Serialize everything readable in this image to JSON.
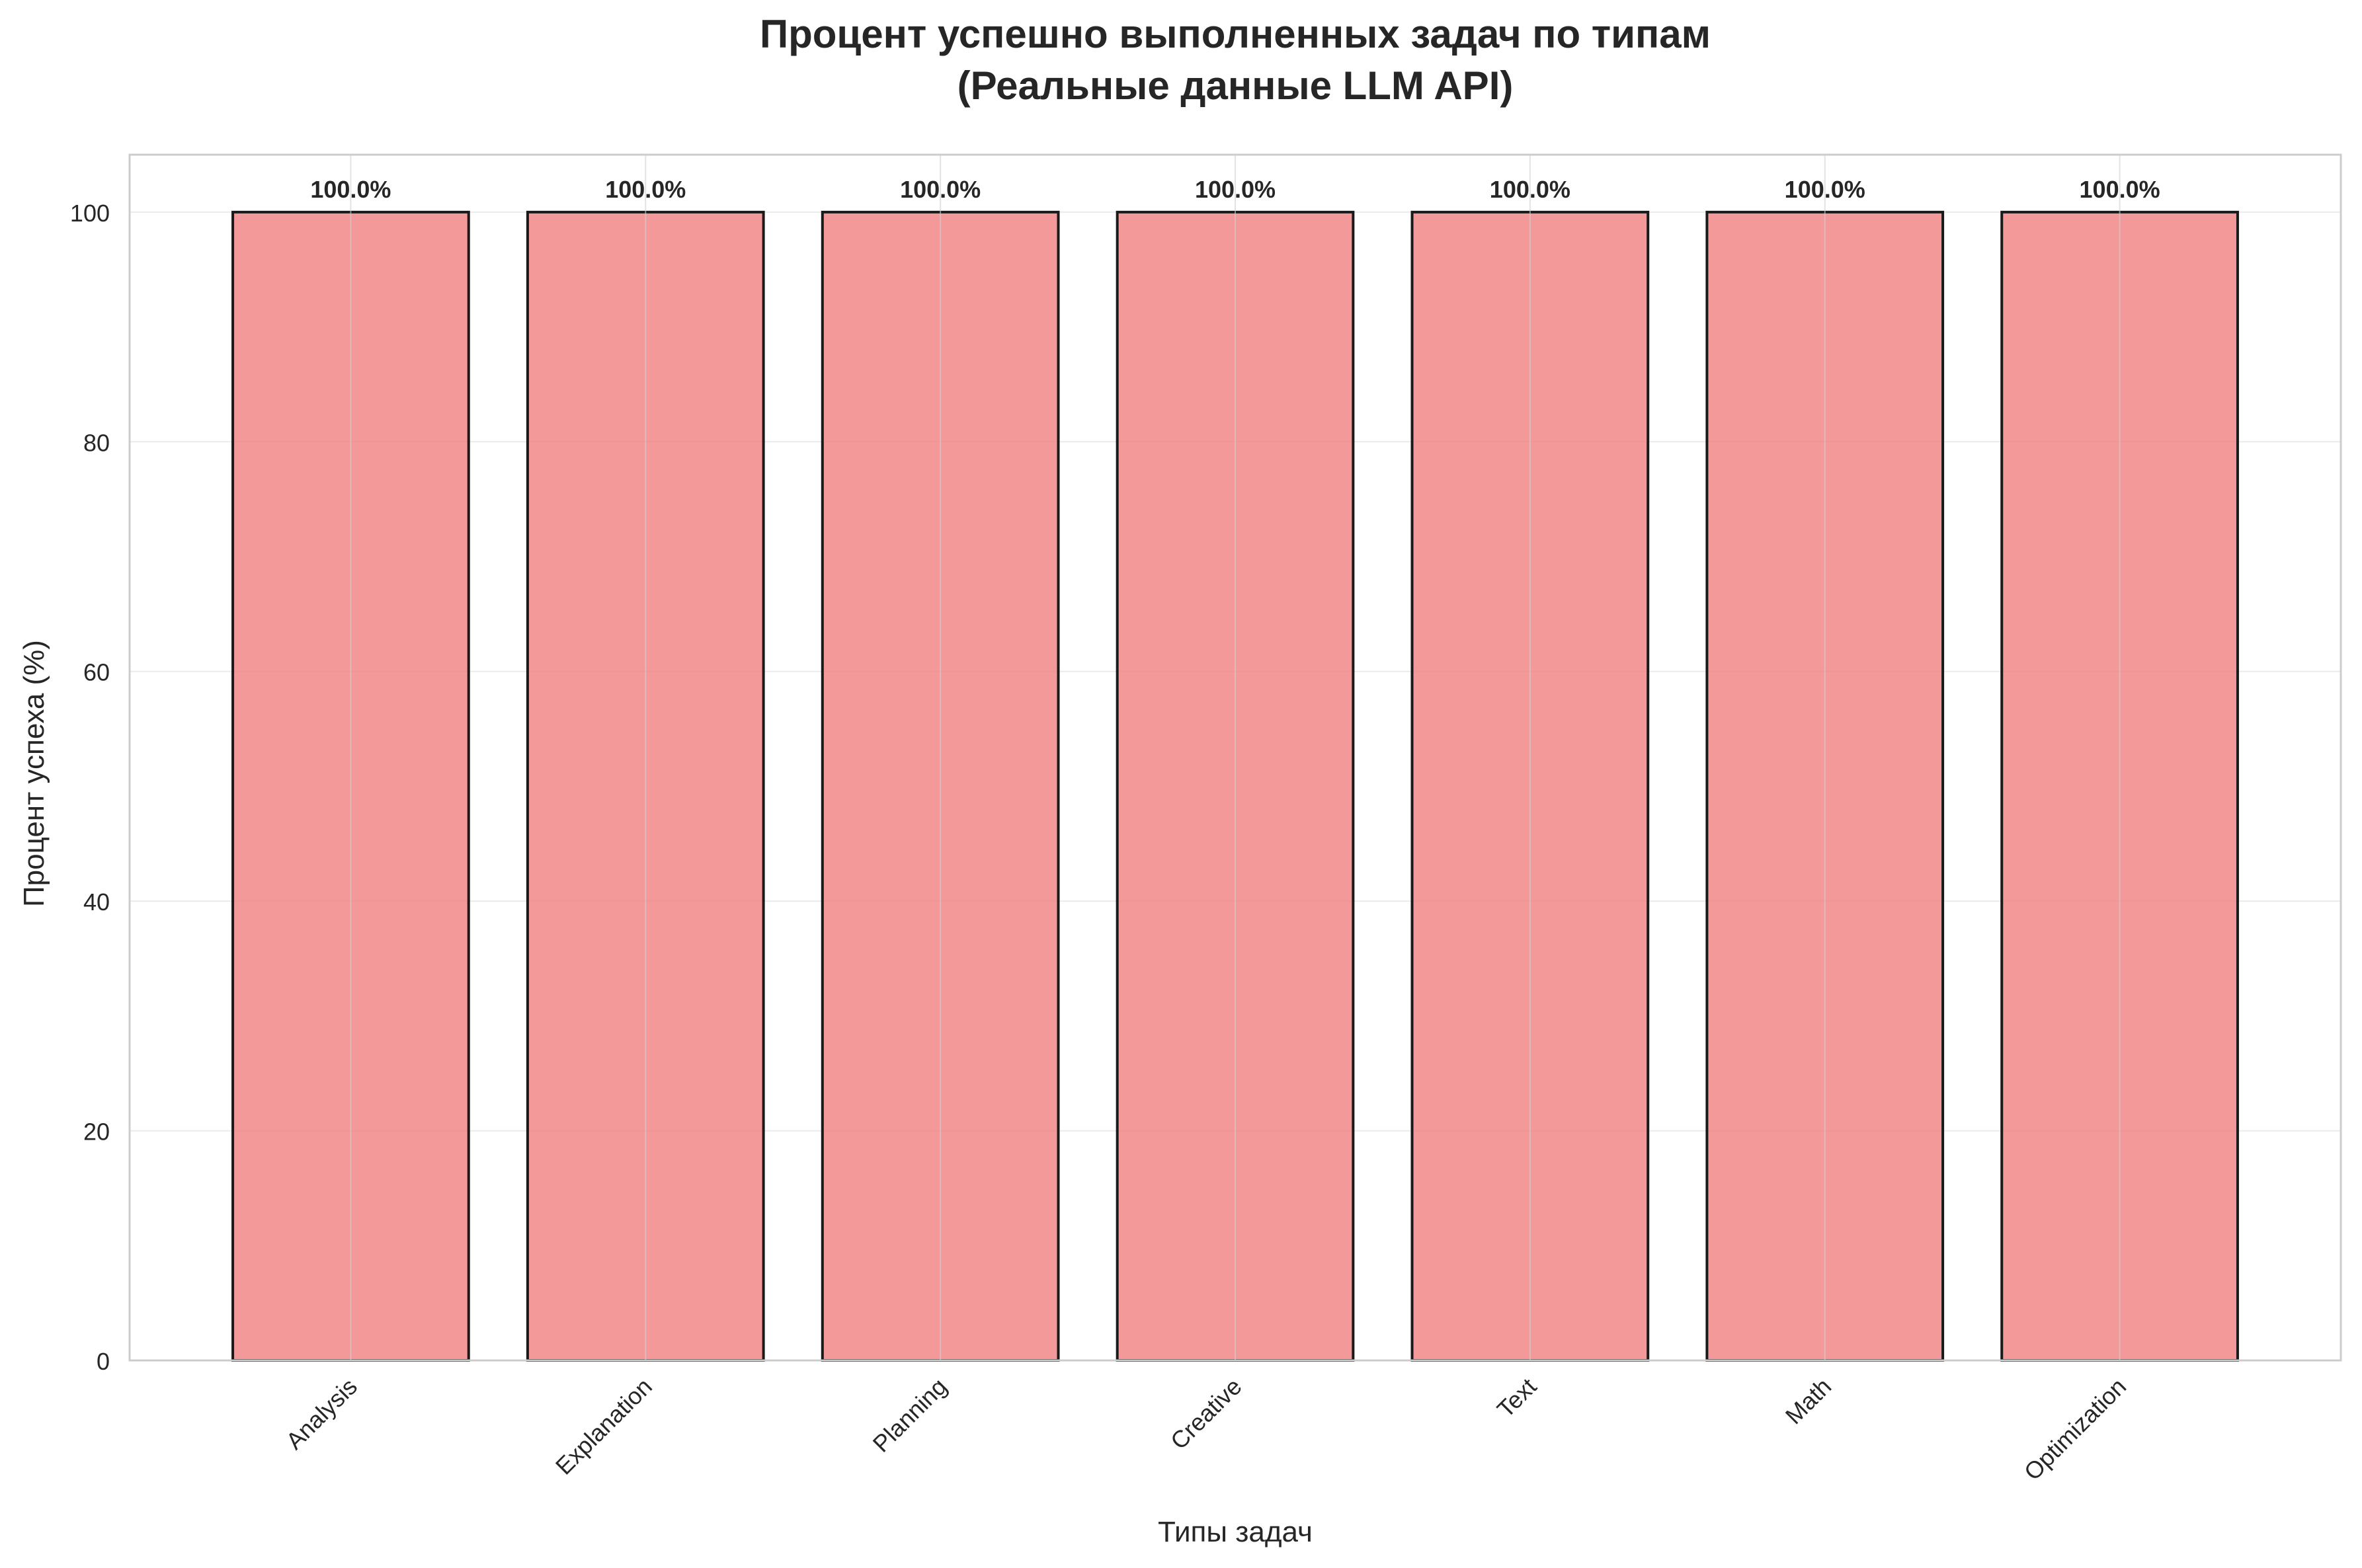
{
  "chart_data": {
    "type": "bar",
    "title_line1": "Процент успешно выполненных задач по типам",
    "title_line2": "(Реальные данные LLM API)",
    "xlabel": "Типы задач",
    "ylabel": "Процент успеха (%)",
    "categories": [
      "Analysis",
      "Explanation",
      "Planning",
      "Creative",
      "Text",
      "Math",
      "Optimization"
    ],
    "values": [
      100.0,
      100.0,
      100.0,
      100.0,
      100.0,
      100.0,
      100.0
    ],
    "data_labels": [
      "100.0%",
      "100.0%",
      "100.0%",
      "100.0%",
      "100.0%",
      "100.0%",
      "100.0%"
    ],
    "ylim": [
      0,
      105
    ],
    "yticks": [
      0,
      20,
      40,
      60,
      80,
      100
    ],
    "ytick_labels": [
      "0",
      "20",
      "40",
      "60",
      "80",
      "100"
    ],
    "grid": true,
    "bar_color": "#f08080",
    "bar_edge_color": "#1a1a1a"
  }
}
